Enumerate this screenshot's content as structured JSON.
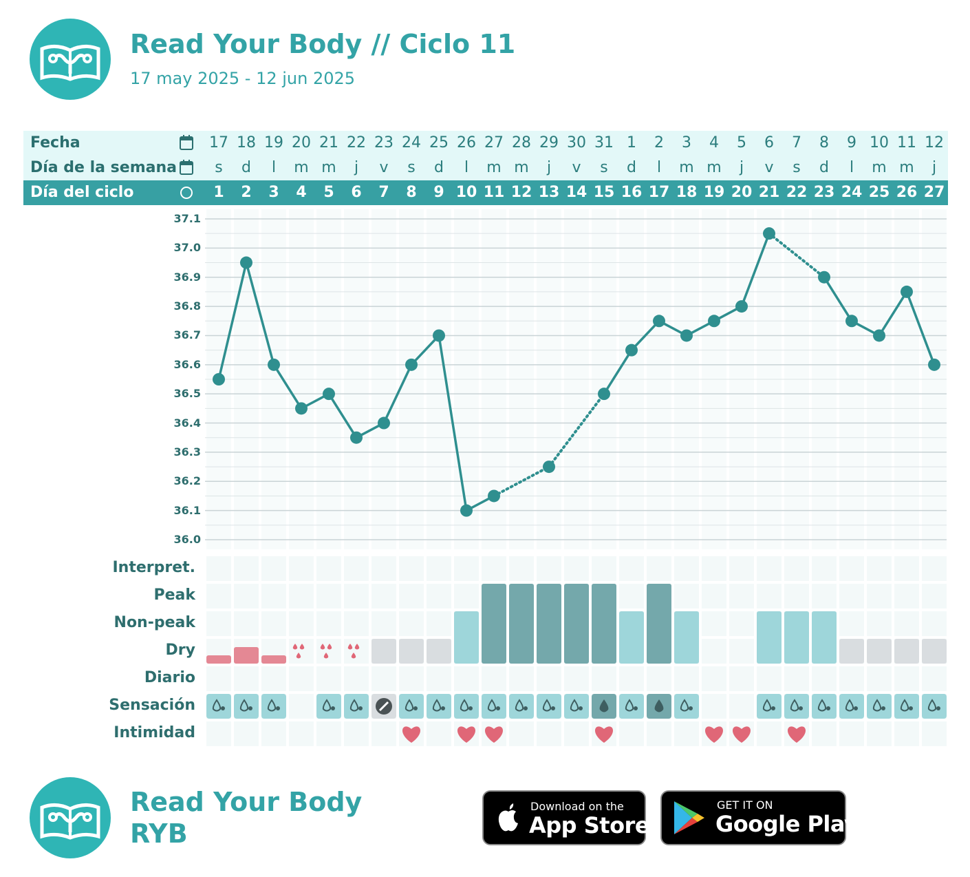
{
  "header": {
    "title": "Read Your Body // Ciclo 11",
    "subtitle": "17 may 2025 - 12 jun 2025"
  },
  "table_header": {
    "row_fecha_label": "Fecha",
    "row_weekday_label": "Día de la semana",
    "row_cycle_label": "Día del ciclo",
    "fecha_icon": "calendar-icon",
    "weekday_icon": "calendar-icon",
    "cycle_icon": "circle-icon"
  },
  "row_labels": {
    "interpretation": "Interpret.",
    "peak": "Peak",
    "nonpeak": "Non-peak",
    "dry": "Dry",
    "diary": "Diario",
    "sensation": "Sensación",
    "intimacy": "Intimidad"
  },
  "colors": {
    "teal": "#2f8f8f",
    "header_band": "#37a0a3",
    "header_light": "#e3f8f8",
    "peak": "#74a8ab",
    "nonpeak": "#9ed6da",
    "dry": "#d9dde0",
    "bleeding": "#e48894",
    "heart": "#e06777"
  },
  "chart_data": {
    "type": "line",
    "ylim": [
      36.0,
      37.1
    ],
    "y_ticks": [
      "37.1",
      "37.0",
      "36.9",
      "36.8",
      "36.7",
      "36.6",
      "36.5",
      "36.4",
      "36.3",
      "36.2",
      "36.1",
      "36.0"
    ],
    "dates": [
      "17",
      "18",
      "19",
      "20",
      "21",
      "22",
      "23",
      "24",
      "25",
      "26",
      "27",
      "28",
      "29",
      "30",
      "31",
      "1",
      "2",
      "3",
      "4",
      "5",
      "6",
      "7",
      "8",
      "9",
      "10",
      "11",
      "12"
    ],
    "weekdays": [
      "s",
      "d",
      "l",
      "m",
      "m",
      "j",
      "v",
      "s",
      "d",
      "l",
      "m",
      "m",
      "j",
      "v",
      "s",
      "d",
      "l",
      "m",
      "m",
      "j",
      "v",
      "s",
      "d",
      "l",
      "m",
      "m",
      "j"
    ],
    "cycle_days": [
      "1",
      "2",
      "3",
      "4",
      "5",
      "6",
      "7",
      "8",
      "9",
      "10",
      "11",
      "12",
      "13",
      "14",
      "15",
      "16",
      "17",
      "18",
      "19",
      "20",
      "21",
      "22",
      "23",
      "24",
      "25",
      "26",
      "27"
    ],
    "temperatures": [
      36.55,
      36.95,
      36.6,
      36.45,
      36.5,
      36.35,
      36.4,
      36.6,
      36.7,
      36.1,
      36.15,
      null,
      36.25,
      null,
      36.5,
      36.65,
      36.75,
      36.7,
      36.75,
      36.8,
      37.05,
      null,
      36.9,
      36.75,
      36.7,
      36.85,
      36.6
    ],
    "mucus": [
      "bleed-light",
      "bleed",
      "bleed-light",
      "spot",
      "spot",
      "spot",
      "dry",
      "dry",
      "dry",
      "nonpeak",
      "peak",
      "peak",
      "peak",
      "peak",
      "peak",
      "nonpeak",
      "peak",
      "nonpeak",
      "none",
      "none",
      "nonpeak",
      "nonpeak",
      "nonpeak",
      "dry",
      "dry",
      "dry",
      "dry"
    ],
    "sensation": [
      "humid",
      "humid",
      "humid",
      "none",
      "humid",
      "humid",
      "blocked",
      "humid",
      "humid",
      "humid",
      "humid",
      "humid",
      "humid",
      "humid",
      "wet",
      "humid",
      "wet",
      "humid",
      "none",
      "none",
      "humid",
      "humid",
      "humid",
      "humid",
      "humid",
      "humid",
      "humid"
    ],
    "intimacy": [
      false,
      false,
      false,
      false,
      false,
      false,
      false,
      true,
      false,
      true,
      true,
      false,
      false,
      false,
      true,
      false,
      false,
      false,
      true,
      true,
      false,
      true,
      false,
      false,
      false,
      false,
      false
    ]
  },
  "footer": {
    "brand_line1": "Read Your Body",
    "brand_line2": "RYB",
    "appstore_small": "Download on the",
    "appstore_big": "App Store",
    "googleplay_small": "GET IT ON",
    "googleplay_big": "Google Play"
  }
}
